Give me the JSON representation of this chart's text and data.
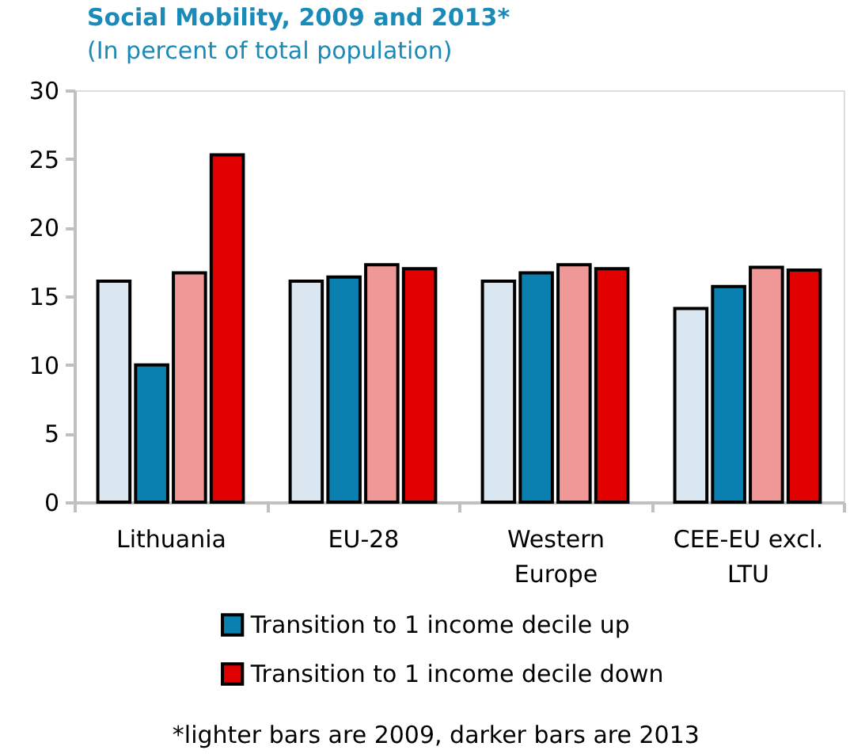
{
  "chart_data": {
    "type": "bar",
    "title": "Social Mobility, 2009 and 2013*",
    "subtitle": "(In percent of total population)",
    "categories": [
      "Lithuania",
      "EU-28",
      "Western Europe",
      "CEE-EU excl. LTU"
    ],
    "series": [
      {
        "color": "#dae6f0",
        "values": [
          16.1,
          16.1,
          16.1,
          14.1
        ]
      },
      {
        "name": "Transition to 1 income decile up",
        "color": "#0a80b0",
        "values": [
          10.0,
          16.4,
          16.7,
          15.7
        ]
      },
      {
        "color": "#f09898",
        "values": [
          16.7,
          17.3,
          17.3,
          17.1
        ]
      },
      {
        "name": "Transition to 1 income decile down",
        "color": "#e00000",
        "values": [
          25.3,
          17.0,
          17.0,
          16.9
        ]
      }
    ],
    "ylim": [
      0,
      30
    ],
    "yticks": [
      0,
      5,
      10,
      15,
      20,
      25,
      30
    ],
    "grid": false,
    "legend": "bottom",
    "annotations": [
      "*lighter bars are 2009, darker bars are 2013"
    ]
  }
}
